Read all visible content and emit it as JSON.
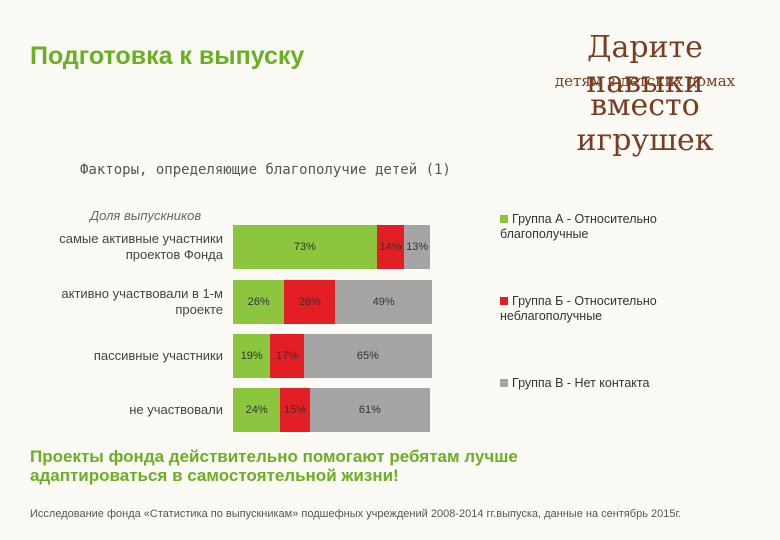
{
  "header": {
    "title": "Подготовка к выпуску",
    "logo": [
      "Дарите навыки",
      "детям в детских домах",
      "вместо игрушек"
    ]
  },
  "chart_data": {
    "type": "stacked-bar-horizontal",
    "title": "Факторы, определяющие благополучие детей (1)",
    "subtitle": "Доля выпускников",
    "categories": [
      "самые активные участники проектов Фонда",
      "активно участвовали в 1-м проекте",
      "пассивные участники",
      "не участвовали"
    ],
    "series": [
      {
        "name": "Группа А - Относительно благополучные",
        "color": "#8cc63e",
        "values": [
          73,
          26,
          19,
          24
        ],
        "value_labels": [
          "73%",
          "26%",
          "19%",
          "24%"
        ]
      },
      {
        "name": "Группа Б - Относительно неблагополучные",
        "color": "#e31e24",
        "values": [
          14,
          26,
          17,
          15
        ],
        "value_labels": [
          "14%",
          "26%",
          "17%",
          "15%"
        ]
      },
      {
        "name": "Группа В - Нет контакта",
        "color": "#a5a5a5",
        "values": [
          13,
          49,
          65,
          61
        ],
        "value_labels": [
          "13%",
          "49%",
          "65%",
          "61%"
        ]
      }
    ]
  },
  "conclusion": "Проекты фонда действительно помогают ребятам лучше адаптироваться в самостоятельной жизни!",
  "source": "Исследование фонда «Статистика по выпускникам» подшефных учреждений 2008-2014 гг.выпуска, данные на сентябрь 2015г."
}
